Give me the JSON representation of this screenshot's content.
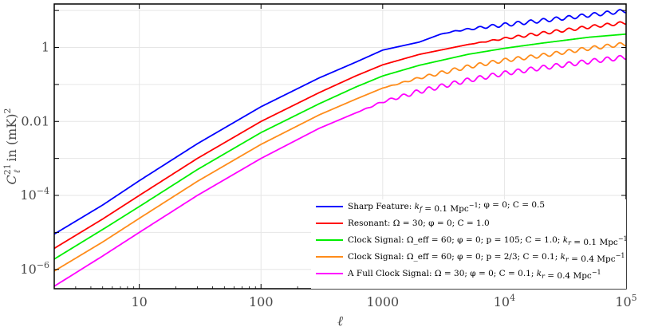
{
  "chart_data": {
    "type": "line",
    "title": "",
    "xlabel": "ℓ",
    "ylabel": "C_ℓ^21 in (mK)^2",
    "x_scale": "log",
    "y_scale": "log",
    "xlim": [
      2,
      100000
    ],
    "ylim": [
      3e-07,
      15
    ],
    "grid": true,
    "legend_position": "bottom-right",
    "x_ticks": [
      {
        "value": 10,
        "label": "10"
      },
      {
        "value": 100,
        "label": "100"
      },
      {
        "value": 1000,
        "label": "1000"
      },
      {
        "value": 10000,
        "label": "10",
        "sup": "4"
      },
      {
        "value": 100000,
        "label": "10",
        "sup": "5"
      }
    ],
    "y_ticks": [
      {
        "value": 1e-06,
        "label": "10",
        "sup": "−6"
      },
      {
        "value": 0.0001,
        "label": "10",
        "sup": "−4"
      },
      {
        "value": 0.01,
        "label": "0.01"
      },
      {
        "value": 1,
        "label": "1"
      }
    ],
    "series": [
      {
        "name": "Sharp Feature",
        "legend": "Sharp Feature: k_f = 0.1 Mpc^-1; φ = 0; C = 0.5",
        "color": "#0000ff",
        "x": [
          2,
          5,
          10,
          30,
          100,
          300,
          600,
          1000,
          2000,
          3000,
          4000,
          5000,
          7000,
          10000,
          20000,
          50000,
          100000
        ],
        "y": [
          9e-06,
          5.5e-05,
          0.00025,
          0.0025,
          0.025,
          0.15,
          0.4,
          0.85,
          1.4,
          2.3,
          2.8,
          3.1,
          3.6,
          4.1,
          5.3,
          7.5,
          9.8
        ],
        "oscillation": {
          "start": 3000,
          "amplitude": 0.05
        }
      },
      {
        "name": "Resonant",
        "legend": "Resonant: Ω = 30; φ = 0; C = 1.0",
        "color": "#ff0000",
        "x": [
          2,
          5,
          10,
          30,
          100,
          300,
          600,
          1000,
          2000,
          5000,
          10000,
          20000,
          50000,
          100000
        ],
        "y": [
          3.7e-06,
          2.3e-05,
          0.0001,
          0.001,
          0.01,
          0.06,
          0.17,
          0.34,
          0.65,
          1.2,
          1.75,
          2.4,
          3.6,
          4.7
        ],
        "oscillation": {
          "start": 5000,
          "amplitude": 0.04
        }
      },
      {
        "name": "Clock Signal",
        "legend": "Clock Signal: Ω_eff = 60; φ = 0; p = 105; C = 1.0; k_r = 0.1 Mpc^-1",
        "color": "#00ee00",
        "x": [
          2,
          5,
          10,
          30,
          100,
          300,
          600,
          1000,
          2000,
          5000,
          10000,
          20000,
          50000,
          100000
        ],
        "y": [
          1.9e-06,
          1.2e-05,
          5e-05,
          0.0005,
          0.005,
          0.03,
          0.085,
          0.17,
          0.33,
          0.65,
          0.95,
          1.3,
          1.9,
          2.3
        ]
      },
      {
        "name": "Clock Signal",
        "legend": "Clock Signal: Ω_eff = 60; φ = 0; p = 2/3; C = 0.1; k_r = 0.4 Mpc^-1",
        "color": "#ff8c1a",
        "x": [
          2,
          5,
          10,
          30,
          100,
          300,
          600,
          1000,
          2000,
          5000,
          10000,
          20000,
          50000,
          100000
        ],
        "y": [
          9e-07,
          5.5e-06,
          2.4e-05,
          0.00024,
          0.0024,
          0.015,
          0.04,
          0.08,
          0.15,
          0.3,
          0.45,
          0.6,
          0.95,
          1.25
        ],
        "oscillation": {
          "start": 1000,
          "amplitude": 0.05
        }
      },
      {
        "name": "A Full Clock Signal",
        "legend": "A Full Clock Signal: Ω = 30; φ = 0; C = 0.1; k_r = 0.4 Mpc^-1",
        "color": "#ff00ff",
        "x": [
          2,
          5,
          10,
          30,
          100,
          300,
          600,
          1000,
          2000,
          5000,
          10000,
          20000,
          50000,
          100000
        ],
        "y": [
          3.5e-07,
          2.3e-06,
          1e-05,
          0.0001,
          0.001,
          0.0065,
          0.017,
          0.034,
          0.065,
          0.13,
          0.2,
          0.28,
          0.42,
          0.55
        ],
        "oscillation": {
          "start": 600,
          "amplitude": 0.06
        }
      }
    ]
  }
}
